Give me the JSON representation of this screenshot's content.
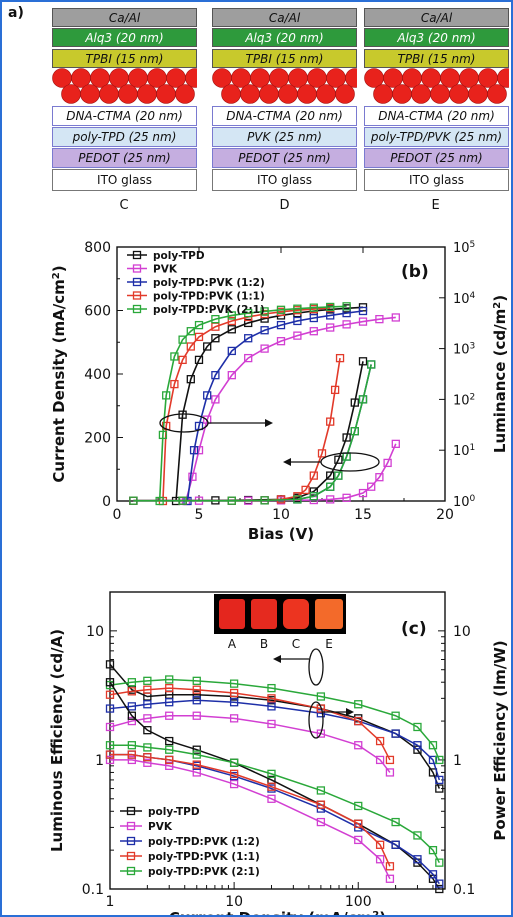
{
  "panel_a": {
    "tag": "a)",
    "devices": [
      {
        "label": "C",
        "layers": [
          "Ca/Al",
          "Alq3 (20 nm)",
          "TPBI (15 nm)",
          "DNA-CTMA (20 nm)",
          "poly-TPD (25 nm)",
          "PEDOT (25 nm)",
          "ITO glass"
        ]
      },
      {
        "label": "D",
        "layers": [
          "Ca/Al",
          "Alq3 (20 nm)",
          "TPBI (15 nm)",
          "DNA-CTMA (20 nm)",
          "PVK (25 nm)",
          "PEDOT (25 nm)",
          "ITO glass"
        ]
      },
      {
        "label": "E",
        "layers": [
          "Ca/Al",
          "Alq3 (20 nm)",
          "TPBI (15 nm)",
          "DNA-CTMA (20 nm)",
          "poly-TPD/PVK (25 nm)",
          "PEDOT (25 nm)",
          "ITO glass"
        ]
      }
    ],
    "layer_colors": [
      "#9e9e9e",
      "#2e9a3c",
      "#c8c92c",
      "#ffffff",
      "#d4e6f4",
      "#c5aee0",
      "#ffffff"
    ]
  },
  "colors": {
    "poly-TPD": "#111111",
    "PVK": "#d23fd2",
    "poly-TPD:PVK (1:2)": "#1e2fa8",
    "poly-TPD:PVK (1:1)": "#e23a2a",
    "poly-TPD:PVK (2:1)": "#2aa83a"
  },
  "chart_data": [
    {
      "type": "line",
      "tag": "(b)",
      "xlabel": "Bias (V)",
      "ylabel": "Current Density (mA/cm2)",
      "ylabel_right": "Luminance (cd/m2)",
      "xlim": [
        0,
        20
      ],
      "ylim": [
        0,
        800
      ],
      "ylim_right": [
        1,
        100000
      ],
      "right_scale": "log",
      "xticks": [
        "0",
        "5",
        "10",
        "15",
        "20"
      ],
      "yticks": [
        "0",
        "200",
        "400",
        "600",
        "800"
      ],
      "yticks_right": [
        "10^0",
        "10^1",
        "10^2",
        "10^3",
        "10^4",
        "10^5"
      ],
      "legend": "top-left",
      "series": [
        {
          "name": "poly-TPD",
          "axis": "luminance",
          "x": [
            3.6,
            4,
            4.5,
            5,
            5.5,
            6,
            7,
            8,
            9,
            10,
            11,
            12,
            13,
            14,
            15
          ],
          "y": [
            1,
            50,
            250,
            600,
            1100,
            1600,
            2400,
            3200,
            3900,
            4500,
            5000,
            5500,
            5900,
            6200,
            6500
          ]
        },
        {
          "name": "PVK",
          "axis": "luminance",
          "x": [
            4.2,
            4.6,
            5,
            5.5,
            6,
            7,
            8,
            9,
            10,
            11,
            12,
            13,
            14,
            15,
            16,
            17
          ],
          "y": [
            1,
            3,
            10,
            40,
            100,
            300,
            650,
            1000,
            1400,
            1800,
            2200,
            2600,
            3000,
            3400,
            3800,
            4100
          ]
        },
        {
          "name": "poly-TPD:PVK (1:2)",
          "axis": "luminance",
          "x": [
            4.3,
            4.7,
            5,
            5.5,
            6,
            7,
            8,
            9,
            10,
            11,
            12,
            13,
            14,
            15
          ],
          "y": [
            1,
            10,
            30,
            120,
            300,
            900,
            1600,
            2300,
            2900,
            3500,
            4000,
            4500,
            5000,
            5500
          ]
        },
        {
          "name": "poly-TPD:PVK (1:1)",
          "axis": "luminance",
          "x": [
            2.8,
            3,
            3.5,
            4,
            4.5,
            5,
            6,
            7,
            8,
            9,
            10,
            11,
            12,
            13
          ],
          "y": [
            1,
            30,
            200,
            600,
            1100,
            1700,
            2700,
            3500,
            4200,
            4800,
            5300,
            5700,
            6000,
            6300
          ]
        },
        {
          "name": "poly-TPD:PVK (2:1)",
          "axis": "luminance",
          "x": [
            2.6,
            2.8,
            3,
            3.5,
            4,
            4.5,
            5,
            6,
            7,
            8,
            9,
            10,
            11,
            12,
            13,
            14
          ],
          "y": [
            1,
            20,
            120,
            700,
            1500,
            2200,
            2900,
            3800,
            4500,
            5000,
            5400,
            5800,
            6100,
            6400,
            6600,
            6800
          ]
        },
        {
          "name": "poly-TPD",
          "axis": "current",
          "x": [
            1,
            4,
            6,
            8,
            10,
            11,
            12,
            13,
            13.5,
            14,
            14.5,
            15
          ],
          "y": [
            1,
            1,
            2,
            3,
            5,
            10,
            30,
            80,
            130,
            200,
            310,
            440
          ]
        },
        {
          "name": "PVK",
          "axis": "current",
          "x": [
            1,
            5,
            8,
            10,
            12,
            13,
            14,
            15,
            15.5,
            16,
            16.5,
            17
          ],
          "y": [
            1,
            1,
            1,
            2,
            3,
            5,
            10,
            25,
            45,
            75,
            120,
            180
          ]
        },
        {
          "name": "poly-TPD:PVK (1:2)",
          "axis": "current",
          "x": [
            1,
            4,
            7,
            9,
            11,
            12,
            13,
            13.5,
            14,
            14.5,
            15,
            15.5
          ],
          "y": [
            1,
            1,
            1,
            2,
            5,
            15,
            45,
            80,
            140,
            220,
            320,
            430
          ]
        },
        {
          "name": "poly-TPD:PVK (1:1)",
          "axis": "current",
          "x": [
            1,
            4,
            7,
            9,
            10,
            11,
            11.5,
            12,
            12.5,
            13,
            13.3,
            13.6
          ],
          "y": [
            1,
            1,
            1,
            2,
            5,
            15,
            35,
            80,
            150,
            250,
            350,
            450
          ]
        },
        {
          "name": "poly-TPD:PVK (2:1)",
          "axis": "current",
          "x": [
            1,
            4,
            7,
            9,
            11,
            12,
            13,
            13.5,
            14,
            14.5,
            15,
            15.5
          ],
          "y": [
            1,
            1,
            1,
            2,
            5,
            15,
            45,
            80,
            140,
            220,
            320,
            430
          ]
        }
      ]
    },
    {
      "type": "line",
      "tag": "(c)",
      "xlabel": "Current Density (mA/cm2)",
      "ylabel": "Luminous Efficiency (cd/A)",
      "ylabel_right": "Power Efficiency (lm/W)",
      "xscale": "log",
      "yscale": "log",
      "xlim": [
        1,
        500
      ],
      "ylim": [
        0.1,
        20
      ],
      "xticks": [
        "1",
        "10",
        "100"
      ],
      "yticks": [
        "0.1",
        "1",
        "10"
      ],
      "yticks_right": [
        "0.1",
        "1",
        "10"
      ],
      "legend": "bottom-left",
      "inset_labels": [
        "A",
        "B",
        "C",
        "E"
      ],
      "series": [
        {
          "name": "poly-TPD",
          "axis": "luminous",
          "x": [
            1,
            1.5,
            2,
            3,
            5,
            10,
            20,
            50,
            100,
            200,
            300,
            400,
            450
          ],
          "y": [
            5.5,
            3.5,
            3.1,
            3.2,
            3.2,
            3.1,
            2.9,
            2.5,
            2.1,
            1.6,
            1.2,
            0.8,
            0.6
          ]
        },
        {
          "name": "PVK",
          "axis": "luminous",
          "x": [
            1,
            1.5,
            2,
            3,
            5,
            10,
            20,
            50,
            100,
            150,
            180
          ],
          "y": [
            1.8,
            2.0,
            2.1,
            2.2,
            2.2,
            2.1,
            1.9,
            1.6,
            1.3,
            1.0,
            0.8
          ]
        },
        {
          "name": "poly-TPD:PVK (1:2)",
          "axis": "luminous",
          "x": [
            1,
            1.5,
            2,
            3,
            5,
            10,
            20,
            50,
            100,
            200,
            300,
            400,
            450
          ],
          "y": [
            2.5,
            2.6,
            2.7,
            2.8,
            2.9,
            2.8,
            2.6,
            2.3,
            2.0,
            1.6,
            1.3,
            1.0,
            0.7
          ]
        },
        {
          "name": "poly-TPD:PVK (1:1)",
          "axis": "luminous",
          "x": [
            1,
            1.5,
            2,
            3,
            5,
            10,
            20,
            50,
            100,
            150,
            180
          ],
          "y": [
            3.2,
            3.4,
            3.5,
            3.6,
            3.5,
            3.3,
            3.0,
            2.5,
            2.0,
            1.4,
            1.0
          ]
        },
        {
          "name": "poly-TPD:PVK (2:1)",
          "axis": "luminous",
          "x": [
            1,
            1.5,
            2,
            3,
            5,
            10,
            20,
            50,
            100,
            200,
            300,
            400,
            450
          ],
          "y": [
            3.8,
            4.0,
            4.1,
            4.2,
            4.1,
            3.9,
            3.6,
            3.1,
            2.7,
            2.2,
            1.8,
            1.3,
            1.0
          ]
        },
        {
          "name": "poly-TPD",
          "axis": "power",
          "x": [
            1,
            1.5,
            2,
            3,
            5,
            10,
            20,
            50,
            100,
            200,
            300,
            400,
            450
          ],
          "y": [
            4.0,
            2.2,
            1.7,
            1.4,
            1.2,
            0.95,
            0.7,
            0.45,
            0.32,
            0.22,
            0.16,
            0.12,
            0.1
          ]
        },
        {
          "name": "PVK",
          "axis": "power",
          "x": [
            1,
            1.5,
            2,
            3,
            5,
            10,
            20,
            50,
            100,
            150,
            180
          ],
          "y": [
            1.0,
            1.0,
            0.95,
            0.9,
            0.8,
            0.65,
            0.5,
            0.33,
            0.24,
            0.17,
            0.12
          ]
        },
        {
          "name": "poly-TPD:PVK (1:2)",
          "axis": "power",
          "x": [
            1,
            1.5,
            2,
            3,
            5,
            10,
            20,
            50,
            100,
            200,
            300,
            400,
            450
          ],
          "y": [
            1.1,
            1.1,
            1.05,
            1.0,
            0.9,
            0.75,
            0.6,
            0.42,
            0.3,
            0.22,
            0.17,
            0.13,
            0.11
          ]
        },
        {
          "name": "poly-TPD:PVK (1:1)",
          "axis": "power",
          "x": [
            1,
            1.5,
            2,
            3,
            5,
            10,
            20,
            50,
            100,
            150,
            180
          ],
          "y": [
            1.1,
            1.1,
            1.05,
            1.0,
            0.92,
            0.78,
            0.62,
            0.45,
            0.32,
            0.22,
            0.15
          ]
        },
        {
          "name": "poly-TPD:PVK (2:1)",
          "axis": "power",
          "x": [
            1,
            1.5,
            2,
            3,
            5,
            10,
            20,
            50,
            100,
            200,
            300,
            400,
            450
          ],
          "y": [
            1.3,
            1.3,
            1.25,
            1.2,
            1.1,
            0.95,
            0.78,
            0.58,
            0.44,
            0.33,
            0.26,
            0.2,
            0.16
          ]
        }
      ]
    }
  ]
}
